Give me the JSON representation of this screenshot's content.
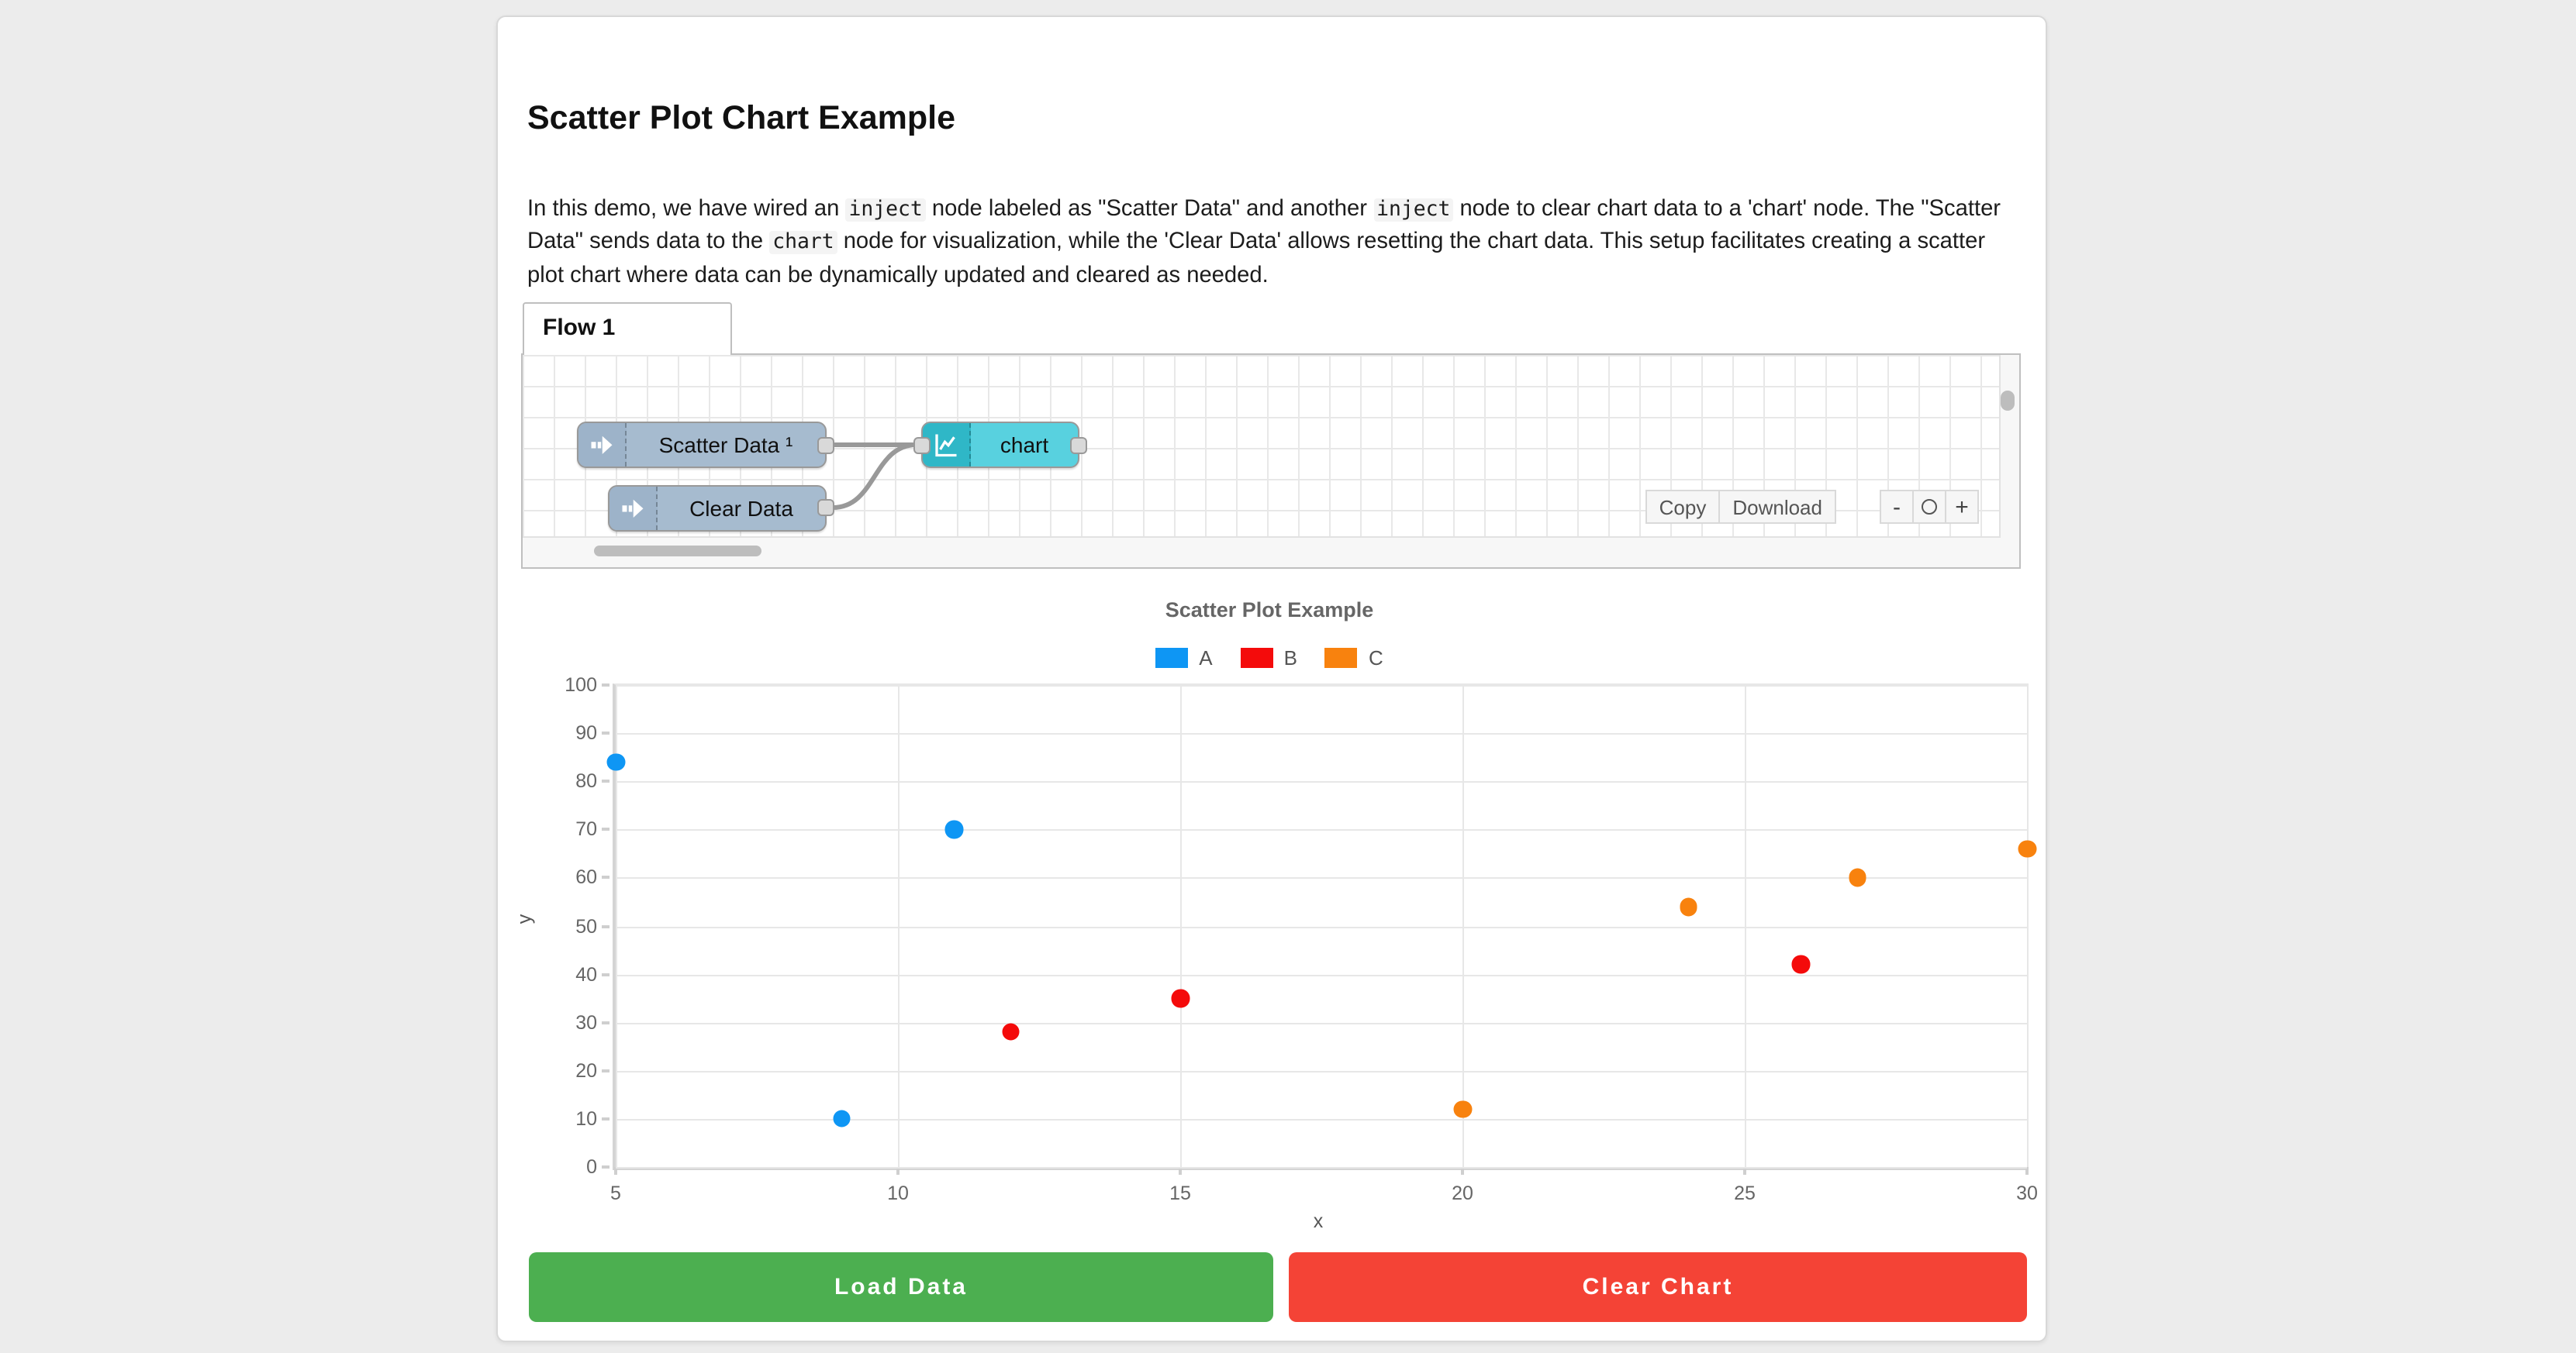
{
  "page": {
    "background": "#ececec"
  },
  "header": {
    "title": "Scatter Plot Chart Example"
  },
  "description": {
    "segments": [
      {
        "code": false,
        "text": "In this demo, we have wired an "
      },
      {
        "code": true,
        "text": "inject"
      },
      {
        "code": false,
        "text": " node labeled as \"Scatter Data\" and another "
      },
      {
        "code": true,
        "text": "inject"
      },
      {
        "code": false,
        "text": " node to clear chart data to a 'chart' node. The \"Scatter Data\" sends data to the "
      },
      {
        "code": true,
        "text": "chart"
      },
      {
        "code": false,
        "text": " node for visualization, while the 'Clear Data' allows resetting the chart data. This setup facilitates creating a scatter plot chart where data can be dynamically updated and cleared as needed."
      }
    ]
  },
  "flow_editor": {
    "tab_label": "Flow 1",
    "nodes": [
      {
        "id": "scatter-data",
        "type": "inject",
        "label": "Scatter Data ¹"
      },
      {
        "id": "clear-data",
        "type": "inject",
        "label": "Clear Data"
      },
      {
        "id": "chart",
        "type": "chart",
        "label": "chart"
      }
    ],
    "toolbar": {
      "copy_label": "Copy",
      "download_label": "Download",
      "zoom_out_label": "-",
      "zoom_in_label": "+"
    }
  },
  "chart_data": {
    "type": "scatter",
    "title": "Scatter Plot Example",
    "xlabel": "x",
    "ylabel": "y",
    "xlim": [
      5,
      30
    ],
    "ylim": [
      0,
      100
    ],
    "x_ticks": [
      5,
      10,
      15,
      20,
      25,
      30
    ],
    "y_ticks": [
      0,
      10,
      20,
      30,
      40,
      50,
      60,
      70,
      80,
      90,
      100
    ],
    "grid": true,
    "legend_position": "top",
    "series": [
      {
        "name": "A",
        "color": "#0e96f4",
        "points": [
          [
            5,
            84
          ],
          [
            9,
            10
          ],
          [
            11,
            70
          ]
        ]
      },
      {
        "name": "B",
        "color": "#f40b0b",
        "points": [
          [
            12,
            28
          ],
          [
            15,
            35
          ],
          [
            26,
            42
          ]
        ]
      },
      {
        "name": "C",
        "color": "#f8820e",
        "points": [
          [
            20,
            12
          ],
          [
            24,
            54
          ],
          [
            27,
            60
          ],
          [
            30,
            66
          ]
        ]
      }
    ]
  },
  "actions": {
    "load_label": "Load Data",
    "load_color": "#4caf50",
    "clear_label": "Clear Chart",
    "clear_color": "#f44336"
  }
}
